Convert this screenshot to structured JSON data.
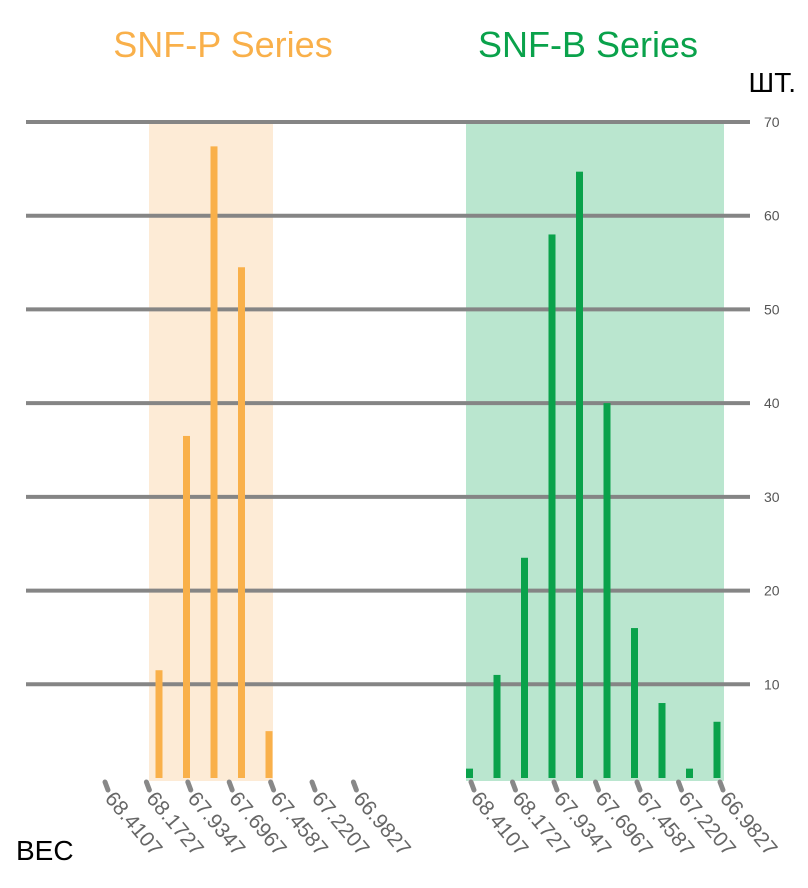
{
  "chart_data": {
    "type": "bar",
    "unit_label": "ШТ.",
    "xlabel": "ВЕС",
    "y_ticks": [
      10,
      20,
      30,
      40,
      50,
      60,
      70
    ],
    "ylim": [
      0,
      70
    ],
    "grid": true,
    "colors": {
      "snf_p": "#f9b04a",
      "snf_p_band": "#fdebd6",
      "snf_b": "#0aa24b",
      "snf_b_band": "#bae6cf",
      "grid": "#858585"
    },
    "panels": [
      {
        "name": "SNF-P Series",
        "x_tick_labels": [
          "68.4107",
          "68.1727",
          "67.9347",
          "67.6967",
          "67.4587",
          "67.2207",
          "66.9827"
        ],
        "values": [
          11.5,
          36.5,
          67.4,
          54.5,
          5.0,
          0,
          0,
          0,
          0,
          0,
          0,
          0,
          0,
          0,
          0
        ]
      },
      {
        "name": "SNF-B Series",
        "x_tick_labels": [
          "68.4107",
          "68.1727",
          "67.9347",
          "67.6967",
          "67.4587",
          "67.2207",
          "66.9827"
        ],
        "values": [
          1.0,
          11.0,
          23.5,
          58.0,
          64.7,
          40.0,
          16.0,
          8.0,
          1.0,
          6.0
        ]
      }
    ]
  }
}
